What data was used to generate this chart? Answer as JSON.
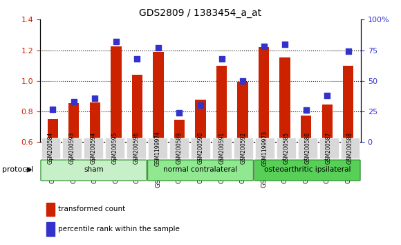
{
  "title": "GDS2809 / 1383454_a_at",
  "categories": [
    "GSM200584",
    "GSM200593",
    "GSM200594",
    "GSM200595",
    "GSM200596",
    "GSM1199974",
    "GSM200589",
    "GSM200590",
    "GSM200591",
    "GSM200592",
    "GSM1199973",
    "GSM200585",
    "GSM200586",
    "GSM200587",
    "GSM200588"
  ],
  "red_values": [
    0.75,
    0.855,
    0.86,
    1.225,
    1.04,
    1.19,
    0.745,
    0.875,
    1.1,
    0.995,
    1.22,
    1.155,
    0.775,
    0.845,
    1.1
  ],
  "blue_values": [
    27,
    33,
    36,
    82,
    68,
    77,
    24,
    30,
    68,
    50,
    78,
    80,
    26,
    38,
    74
  ],
  "ylim_left": [
    0.6,
    1.4
  ],
  "ylim_right": [
    0,
    100
  ],
  "yticks_left": [
    0.6,
    0.8,
    1.0,
    1.2,
    1.4
  ],
  "yticks_right": [
    0,
    25,
    50,
    75,
    100
  ],
  "ytick_labels_right": [
    "0",
    "25",
    "50",
    "75",
    "100%"
  ],
  "groups": [
    {
      "label": "sham",
      "start": 0,
      "end": 4,
      "color": "#c8f0c8"
    },
    {
      "label": "normal contralateral",
      "start": 5,
      "end": 9,
      "color": "#90e890"
    },
    {
      "label": "osteoarthritic ipsilateral",
      "start": 10,
      "end": 14,
      "color": "#58d058"
    }
  ],
  "protocol_label": "protocol",
  "red_color": "#cc2200",
  "blue_color": "#3333cc",
  "bar_width": 0.5,
  "blue_marker_size": 6
}
